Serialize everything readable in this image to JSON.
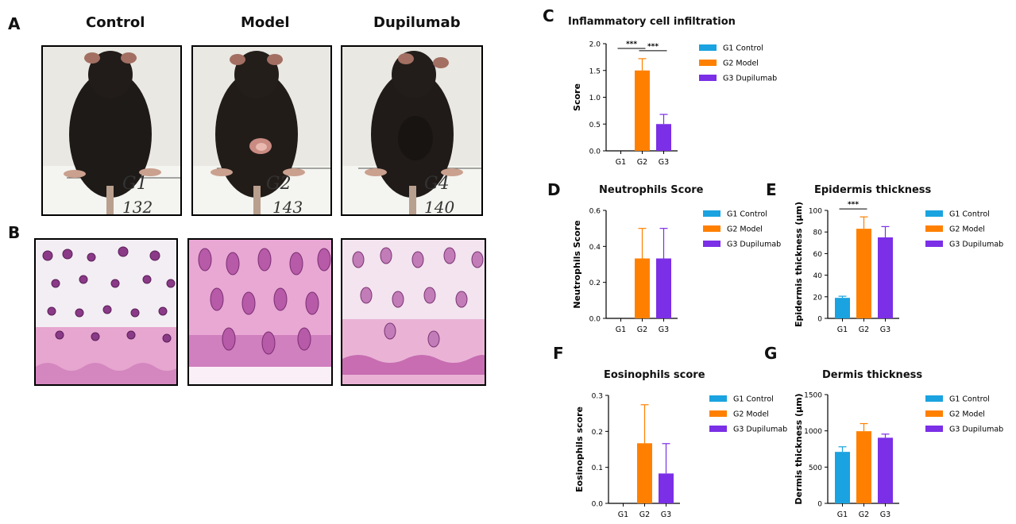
{
  "panel_labels": {
    "a": "A",
    "b": "B",
    "c": "C",
    "d": "D",
    "e": "E",
    "f": "F",
    "g": "G"
  },
  "photo_columns": [
    "Control",
    "Model",
    "Dupilumab"
  ],
  "mouse_tags": [
    {
      "group": "G1",
      "id": "132"
    },
    {
      "group": "G2",
      "id": "143"
    },
    {
      "group": "G4",
      "id": "140"
    }
  ],
  "colors": {
    "g1": "#1aa3e0",
    "g2": "#ff8000",
    "g3": "#7b2fe6"
  },
  "legend": [
    "G1 Control",
    "G2 Model",
    "G3 Dupilumab"
  ],
  "chart_data": [
    {
      "id": "C",
      "type": "bar",
      "title": "Inflammatory cell infiltration",
      "ylabel": "Score",
      "categories": [
        "G1",
        "G2",
        "G3"
      ],
      "values": [
        0,
        1.5,
        0.5
      ],
      "errors": [
        0,
        0.22,
        0.18
      ],
      "ylim": [
        0,
        2.0
      ],
      "yticks": [
        "0.0",
        "0.5",
        "1.0",
        "1.5",
        "2.0"
      ],
      "significance": [
        {
          "from": 0,
          "to": 1,
          "label": "***"
        },
        {
          "from": 1,
          "to": 2,
          "label": "***"
        }
      ]
    },
    {
      "id": "D",
      "type": "bar",
      "title": "Neutrophils Score",
      "ylabel": "Neutrophils Score",
      "categories": [
        "G1",
        "G2",
        "G3"
      ],
      "values": [
        0,
        0.333,
        0.333
      ],
      "errors": [
        0,
        0.167,
        0.167
      ],
      "ylim": [
        0,
        0.6
      ],
      "yticks": [
        "0.0",
        "0.2",
        "0.4",
        "0.6"
      ],
      "significance": []
    },
    {
      "id": "E",
      "type": "bar",
      "title": "Epidermis thickness",
      "ylabel": "Epidermis thickness (μm)",
      "categories": [
        "G1",
        "G2",
        "G3"
      ],
      "values": [
        19,
        83,
        75
      ],
      "errors": [
        1.5,
        11,
        10
      ],
      "ylim": [
        0,
        100
      ],
      "yticks": [
        "0",
        "20",
        "40",
        "60",
        "80",
        "100"
      ],
      "significance": [
        {
          "from": 0,
          "to": 1,
          "label": "***"
        }
      ]
    },
    {
      "id": "F",
      "type": "bar",
      "title": "Eosinophils score",
      "ylabel": "Eosinophils score",
      "categories": [
        "G1",
        "G2",
        "G3"
      ],
      "values": [
        0,
        0.167,
        0.083
      ],
      "errors": [
        0,
        0.107,
        0.083
      ],
      "ylim": [
        0,
        0.3
      ],
      "yticks": [
        "0.0",
        "0.1",
        "0.2",
        "0.3"
      ],
      "significance": []
    },
    {
      "id": "G",
      "type": "bar",
      "title": "Dermis thickness",
      "ylabel": "Dermis thickness (μm)",
      "categories": [
        "G1",
        "G2",
        "G3"
      ],
      "values": [
        710,
        995,
        905
      ],
      "errors": [
        70,
        105,
        50
      ],
      "ylim": [
        0,
        1500
      ],
      "yticks": [
        "0",
        "500",
        "1000",
        "1500"
      ],
      "significance": []
    }
  ]
}
